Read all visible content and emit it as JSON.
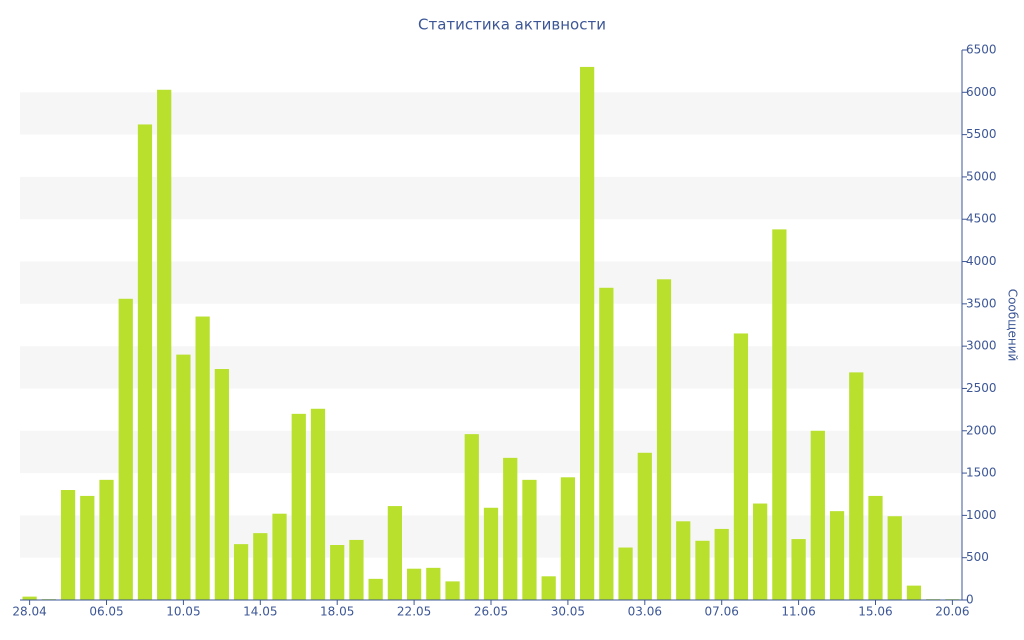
{
  "chart_data": {
    "type": "bar",
    "title": "Статистика активности",
    "y_label": "Сообщений",
    "categories": [
      "28.04",
      null,
      null,
      null,
      "06.05",
      null,
      null,
      null,
      "10.05",
      null,
      null,
      null,
      "14.05",
      null,
      null,
      null,
      "18.05",
      null,
      null,
      null,
      "22.05",
      null,
      null,
      null,
      "26.05",
      null,
      null,
      null,
      "30.05",
      null,
      null,
      null,
      "03.06",
      null,
      null,
      null,
      "07.06",
      null,
      null,
      null,
      "11.06",
      null,
      null,
      null,
      "15.06",
      null,
      null,
      null,
      "20.06"
    ],
    "values": [
      40,
      10,
      1300,
      1230,
      1420,
      3560,
      5620,
      6030,
      2900,
      3350,
      2730,
      660,
      790,
      1020,
      2200,
      2260,
      650,
      710,
      250,
      1110,
      370,
      380,
      220,
      1960,
      1090,
      1680,
      1420,
      280,
      1450,
      6300,
      3690,
      620,
      1740,
      3790,
      930,
      700,
      840,
      3150,
      1140,
      4380,
      720,
      2000,
      1050,
      2690,
      1230,
      990,
      170,
      10,
      10
    ],
    "color": "#b8e02c",
    "ylim": [
      0,
      6500
    ],
    "yticks": [
      0,
      500,
      1000,
      1500,
      2000,
      2500,
      3000,
      3500,
      4000,
      4500,
      5000,
      5500,
      6000,
      6500
    ],
    "grid": true,
    "y_axis_side": "right"
  }
}
